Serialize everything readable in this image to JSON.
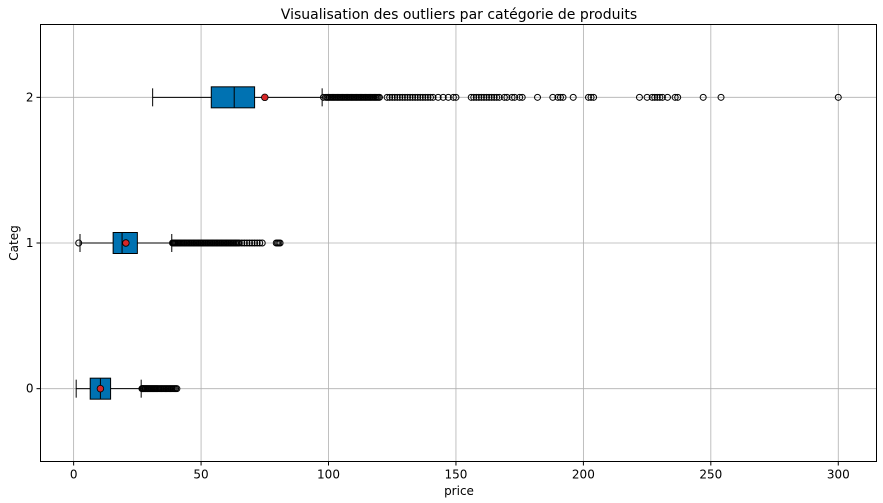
{
  "chart_data": {
    "type": "boxplot",
    "orientation": "horizontal",
    "title": "Visualisation des outliers par catégorie de produits",
    "xlabel": "price",
    "ylabel": "Categ",
    "xlim": [
      -13,
      315
    ],
    "xticks": [
      0,
      50,
      100,
      150,
      200,
      250,
      300
    ],
    "categories": [
      "0",
      "1",
      "2"
    ],
    "grid": true,
    "colors": {
      "box": "#0072b2",
      "mean": "#d62728",
      "outlier_edge": "#000000",
      "grid": "#b0b0b0"
    },
    "boxes": [
      {
        "category": "0",
        "whisker_low": 1,
        "q1": 6.5,
        "median": 10.5,
        "q3": 14.5,
        "whisker_high": 26.5,
        "mean": 10.5,
        "outliers": [
          26.8,
          27,
          27.3,
          27.6,
          28,
          28.3,
          28.7,
          29,
          29.4,
          29.8,
          30.2,
          30.6,
          31,
          31.4,
          31.8,
          32.2,
          32.6,
          33,
          33.5,
          34,
          34.5,
          35,
          35.5,
          36,
          36.5,
          37,
          37.5,
          38,
          38.5,
          39,
          39.5,
          40,
          40.5
        ]
      },
      {
        "category": "1",
        "whisker_low": 2.5,
        "q1": 15.5,
        "median": 19,
        "q3": 25,
        "whisker_high": 38.5,
        "mean": 20.5,
        "outliers": [
          2,
          38.8,
          39,
          39.3,
          39.6,
          40,
          40.4,
          40.8,
          41.2,
          41.6,
          42,
          42.5,
          43,
          43.5,
          44,
          44.5,
          45,
          45.5,
          46,
          46.5,
          47,
          47.5,
          48,
          48.5,
          49,
          49.5,
          50,
          50.5,
          51,
          51.5,
          52,
          52.5,
          53,
          53.5,
          54,
          54.5,
          55,
          55.5,
          56,
          56.5,
          57,
          57.5,
          58,
          58.5,
          59,
          59.5,
          60,
          60.5,
          61,
          61.5,
          62,
          62.5,
          63,
          63.5,
          64,
          64.5,
          65,
          66,
          67,
          68,
          69,
          70,
          71,
          72,
          73,
          74,
          79.5,
          80,
          80.5,
          81
        ]
      },
      {
        "category": "2",
        "whisker_low": 31,
        "q1": 54,
        "median": 63,
        "q3": 71,
        "whisker_high": 97.5,
        "mean": 75,
        "outliers": [
          98,
          99,
          99.5,
          100,
          100.5,
          101,
          101.5,
          102,
          102.5,
          103,
          103.5,
          104,
          104.5,
          105,
          105.5,
          106,
          106.5,
          107,
          107.5,
          108,
          108.5,
          109,
          109.5,
          110,
          110.5,
          111,
          111.5,
          112,
          112.5,
          113,
          113.5,
          114,
          114.5,
          115,
          115.5,
          116,
          116.5,
          117,
          117.5,
          118,
          118.5,
          119,
          119.5,
          120,
          123,
          124,
          125,
          126,
          127,
          128,
          129,
          130,
          131,
          132,
          133,
          134,
          135,
          136,
          137,
          138,
          139,
          140,
          141,
          143,
          145,
          147,
          149,
          150,
          156,
          157,
          158,
          159,
          160,
          161,
          162,
          163,
          164,
          165,
          166,
          167,
          169,
          170,
          172,
          173,
          175,
          176,
          182,
          188,
          190,
          191,
          192,
          196,
          202,
          203,
          204,
          222,
          225,
          227,
          228,
          229,
          230,
          231,
          233,
          236,
          237,
          247,
          254,
          300
        ]
      }
    ]
  }
}
